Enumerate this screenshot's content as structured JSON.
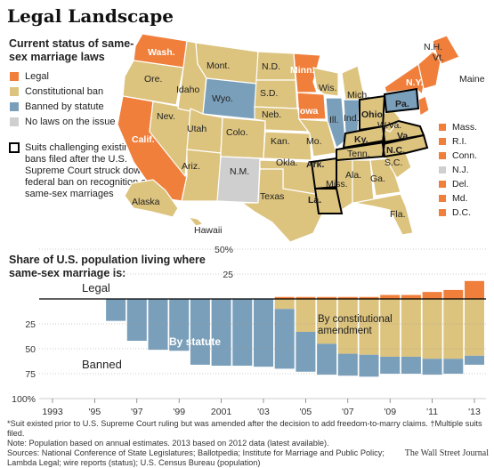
{
  "title": "Legal Landscape",
  "map": {
    "subtitle": "Current status of same-sex marriage laws",
    "legend": [
      {
        "label": "Legal",
        "color": "#f07f3c"
      },
      {
        "label": "Constitutional ban",
        "color": "#dcc37e"
      },
      {
        "label": "Banned by statute",
        "color": "#7a9fba"
      },
      {
        "label": "No laws on the issue",
        "color": "#cfcfcf"
      }
    ],
    "suit_label": "Suits challenging existing bans filed after the U.S. Supreme Court struck down a federal ban on recognition of same-sex marriages",
    "state_labels": [
      "Wash.",
      "Ore.",
      "Calif.",
      "Nev.",
      "Idaho",
      "Mont.",
      "Wyo.",
      "Utah",
      "Ariz.",
      "Colo.",
      "N.M.",
      "N.D.",
      "S.D.",
      "Neb.",
      "Kan.",
      "Okla.",
      "Texas",
      "Minn.",
      "Iowa",
      "Mo.",
      "Ark.",
      "La.",
      "Wis.",
      "Ill.",
      "Mich.",
      "Ind.",
      "Ohio",
      "Ky.",
      "Tenn.",
      "Miss.",
      "Ala.",
      "Ga.",
      "Fla.",
      "S.C.",
      "N.C.",
      "Va.",
      "W.Va.",
      "Pa.",
      "N.Y.",
      "Maine",
      "N.H.",
      "Vt.",
      "Alaska",
      "Hawaii"
    ],
    "side_states": [
      {
        "label": "Mass.",
        "color": "#f07f3c"
      },
      {
        "label": "R.I.",
        "color": "#f07f3c"
      },
      {
        "label": "Conn.",
        "color": "#f07f3c"
      },
      {
        "label": "N.J.",
        "color": "#cfcfcf"
      },
      {
        "label": "Del.",
        "color": "#f07f3c"
      },
      {
        "label": "Md.",
        "color": "#f07f3c"
      },
      {
        "label": "D.C.",
        "color": "#f07f3c"
      }
    ]
  },
  "chart_title": "Share of U.S. population living where same-sex marriage is:",
  "chart_data": {
    "type": "bar",
    "title": "Share of U.S. population living where same-sex marriage is:",
    "x_tick_labels": [
      "1993",
      "'95",
      "'97",
      "'99",
      "2001",
      "'03",
      "'05",
      "'07",
      "'09",
      "'11",
      "'13"
    ],
    "y_tick_labels": [
      "50%",
      "25",
      "25",
      "50",
      "75",
      "100%"
    ],
    "annotations": [
      "Legal",
      "Banned",
      "By statute",
      "By constitutional amendment"
    ],
    "colors": {
      "legal": "#f07f3c",
      "statute": "#7a9fba",
      "constitutional": "#dcc37e"
    },
    "x": [
      1993,
      1994,
      1995,
      1996,
      1997,
      1998,
      1999,
      2000,
      2001,
      2002,
      2003,
      2004,
      2005,
      2006,
      2007,
      2008,
      2009,
      2010,
      2011,
      2012,
      2013
    ],
    "series": [
      {
        "name": "Legal",
        "values": [
          0,
          0,
          0,
          0,
          0,
          0,
          0,
          0,
          0,
          0,
          0,
          2,
          2,
          2,
          2,
          2,
          4,
          4,
          7,
          9,
          18
        ]
      },
      {
        "name": "By constitutional amendment",
        "values": [
          0,
          0,
          0,
          0,
          0,
          0,
          0,
          0,
          0,
          0,
          0,
          10,
          33,
          45,
          55,
          56,
          58,
          58,
          60,
          60,
          57
        ]
      },
      {
        "name": "By statute",
        "values": [
          0,
          0,
          0,
          22,
          42,
          51,
          52,
          66,
          67,
          67,
          68,
          60,
          40,
          31,
          22,
          22,
          17,
          17,
          16,
          15,
          9
        ]
      }
    ]
  },
  "footnotes": [
    "*Suit existed prior to U.S. Supreme Court ruling but was amended after the decision to add freedom-to-marry claims.   †Multiple suits filed.",
    "Note: Population based on annual estimates. 2013 based on 2012 data (latest available).",
    "Sources: National Conference of State Legislatures; Ballotpedia; Institute for Marriage and Public Policy;",
    "Lambda Legal; wire reports (status); U.S. Census Bureau (population)"
  ],
  "credit": "The Wall Street Journal"
}
